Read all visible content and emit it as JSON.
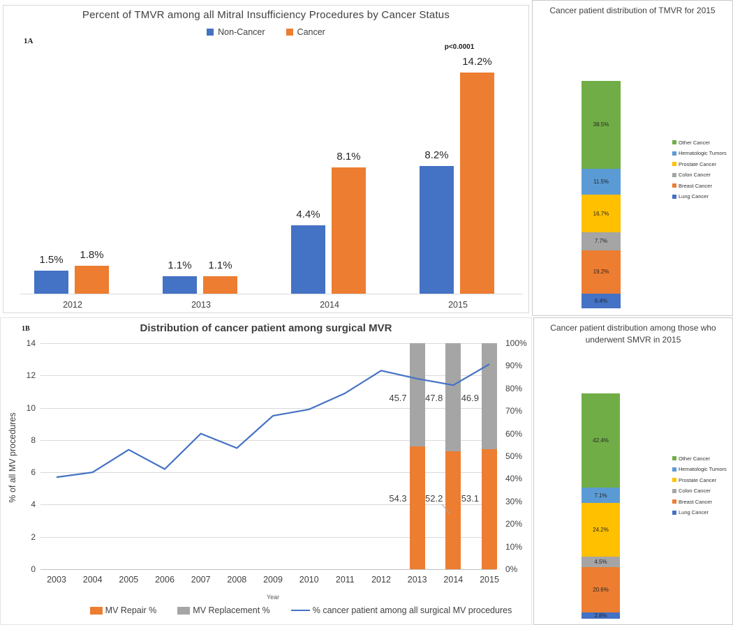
{
  "chart_data": [
    {
      "id": "panel-1a",
      "tag": "1A",
      "type": "bar",
      "title": "Percent of TMVR among all Mitral Insufficiency Procedures by Cancer Status",
      "annotation": "p<0.0001",
      "categories": [
        "2012",
        "2013",
        "2014",
        "2015"
      ],
      "series": [
        {
          "name": "Non-Cancer",
          "color": "#4472C4",
          "values": [
            1.5,
            1.1,
            4.4,
            8.2
          ],
          "labels": [
            "1.5%",
            "1.1%",
            "4.4%",
            "8.2%"
          ]
        },
        {
          "name": "Cancer",
          "color": "#ED7D31",
          "values": [
            1.8,
            1.1,
            8.1,
            14.2
          ],
          "labels": [
            "1.8%",
            "1.1%",
            "8.1%",
            "14.2%"
          ]
        }
      ],
      "ylim": [
        0,
        14.2
      ],
      "legend_position": "top",
      "gridlines": false
    },
    {
      "id": "panel-tmvr-distribution-2015",
      "type": "stacked-bar",
      "title": "Cancer patient distribution of TMVR for 2015",
      "segments": [
        {
          "name": "Other Cancer",
          "value": 38.5,
          "label": "38.5%",
          "color": "#70AD47"
        },
        {
          "name": "Hematologic Tumors",
          "value": 11.5,
          "label": "11.5%",
          "color": "#5B9BD5"
        },
        {
          "name": "Prostate Cancer",
          "value": 16.7,
          "label": "16.7%",
          "color": "#FFC000"
        },
        {
          "name": "Colon Cancer",
          "value": 7.7,
          "label": "7.7%",
          "color": "#A5A5A5"
        },
        {
          "name": "Breast Cancer",
          "value": 19.2,
          "label": "19.2%",
          "color": "#ED7D31"
        },
        {
          "name": "Lung Cancer",
          "value": 6.4,
          "label": "6.4%",
          "color": "#4472C4"
        }
      ],
      "legend_position": "right"
    },
    {
      "id": "panel-1b",
      "tag": "1B",
      "type": "combo",
      "title": "Distribution of cancer patient among surgical MVR",
      "xlabel": "Year",
      "ylabel_left": "% of all MV procedures",
      "x": [
        2003,
        2004,
        2005,
        2006,
        2007,
        2008,
        2009,
        2010,
        2011,
        2012,
        2013,
        2014,
        2015
      ],
      "left_ticks": [
        0,
        2,
        4,
        6,
        8,
        10,
        12,
        14
      ],
      "right_ticks": [
        "0%",
        "10%",
        "20%",
        "30%",
        "40%",
        "50%",
        "60%",
        "70%",
        "80%",
        "90%",
        "100%"
      ],
      "ylim_left": [
        0,
        14
      ],
      "ylim_right": [
        0,
        100
      ],
      "gridlines": true,
      "legend_position": "bottom",
      "line": {
        "name": "% cancer patient among all surgical MV procedures",
        "color": "#4472C4",
        "axis": "left",
        "values": [
          5.7,
          6.0,
          7.4,
          6.2,
          8.4,
          7.5,
          9.5,
          9.9,
          10.9,
          12.3,
          11.8,
          11.4,
          12.7
        ]
      },
      "bars": {
        "axis": "right",
        "categories": [
          "2013",
          "2014",
          "2015"
        ],
        "series": [
          {
            "name": "MV Repair %",
            "color": "#ED7D31",
            "values": [
              54.3,
              52.2,
              53.1
            ],
            "labels": [
              "54.3",
              "52.2",
              "53.1"
            ]
          },
          {
            "name": "MV Replacement %",
            "color": "#A5A5A5",
            "values": [
              45.7,
              47.8,
              46.9
            ],
            "labels": [
              "45.7",
              "47.8",
              "46.9"
            ]
          }
        ]
      }
    },
    {
      "id": "panel-smvr-distribution-2015",
      "type": "stacked-bar",
      "title": "Cancer patient distribution among those who underwent SMVR in 2015",
      "segments": [
        {
          "name": "Other Cancer",
          "value": 42.4,
          "label": "42.4%",
          "color": "#70AD47"
        },
        {
          "name": "Hematologic Tumors",
          "value": 7.1,
          "label": "7.1%",
          "color": "#5B9BD5"
        },
        {
          "name": "Prostate Cancer",
          "value": 24.2,
          "label": "24.2%",
          "color": "#FFC000"
        },
        {
          "name": "Colon Cancer",
          "value": 4.5,
          "label": "4.5%",
          "color": "#A5A5A5"
        },
        {
          "name": "Breast Cancer",
          "value": 20.6,
          "label": "20.6%",
          "color": "#ED7D31"
        },
        {
          "name": "Lung Cancer",
          "value": 2.8,
          "label": "2.8%",
          "color": "#4472C4"
        }
      ],
      "legend_position": "right"
    }
  ]
}
